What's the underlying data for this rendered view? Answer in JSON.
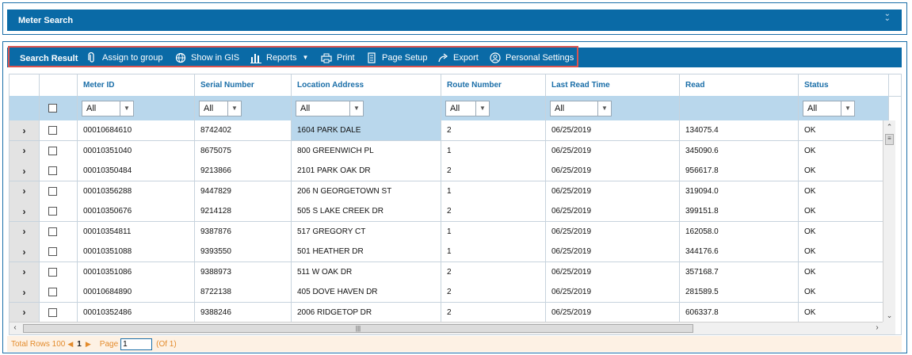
{
  "meter_search": {
    "title": "Meter Search"
  },
  "toolbar": {
    "title": "Search Result",
    "items": [
      {
        "label": "Assign to group",
        "icon": "paperclip-icon"
      },
      {
        "label": "Show in GIS",
        "icon": "globe-icon"
      },
      {
        "label": "Reports",
        "icon": "bar-chart-icon"
      },
      {
        "label": "Print",
        "icon": "print-icon"
      },
      {
        "label": "Page Setup",
        "icon": "page-icon"
      },
      {
        "label": "Export",
        "icon": "export-icon"
      },
      {
        "label": "Personal Settings",
        "icon": "user-icon"
      }
    ]
  },
  "grid": {
    "columns": [
      "Meter ID",
      "Serial Number",
      "Location Address",
      "Route Number",
      "Last Read Time",
      "Read",
      "Status"
    ],
    "filters": {
      "meter_id": "All",
      "serial_number": "All",
      "location_address": "All",
      "route_number": "All",
      "last_read_time": "All",
      "status": "All"
    },
    "rows": [
      {
        "meter_id": "00010684610",
        "serial": "8742402",
        "address": "1604 PARK DALE",
        "route": "2",
        "time": "06/25/2019",
        "read": "134075.4",
        "status": "OK"
      },
      {
        "meter_id": "00010351040",
        "serial": "8675075",
        "address": "800 GREENWICH PL",
        "route": "1",
        "time": "06/25/2019",
        "read": "345090.6",
        "status": "OK"
      },
      {
        "meter_id": "00010350484",
        "serial": "9213866",
        "address": "2101 PARK OAK DR",
        "route": "2",
        "time": "06/25/2019",
        "read": "956617.8",
        "status": "OK"
      },
      {
        "meter_id": "00010356288",
        "serial": "9447829",
        "address": "206 N GEORGETOWN ST",
        "route": "1",
        "time": "06/25/2019",
        "read": "319094.0",
        "status": "OK"
      },
      {
        "meter_id": "00010350676",
        "serial": "9214128",
        "address": "505 S LAKE CREEK DR",
        "route": "2",
        "time": "06/25/2019",
        "read": "399151.8",
        "status": "OK"
      },
      {
        "meter_id": "00010354811",
        "serial": "9387876",
        "address": "517 GREGORY CT",
        "route": "1",
        "time": "06/25/2019",
        "read": "162058.0",
        "status": "OK"
      },
      {
        "meter_id": "00010351088",
        "serial": "9393550",
        "address": "501 HEATHER DR",
        "route": "1",
        "time": "06/25/2019",
        "read": "344176.6",
        "status": "OK"
      },
      {
        "meter_id": "00010351086",
        "serial": "9388973",
        "address": "511 W OAK DR",
        "route": "2",
        "time": "06/25/2019",
        "read": "357168.7",
        "status": "OK"
      },
      {
        "meter_id": "00010684890",
        "serial": "8722138",
        "address": "405 DOVE HAVEN DR",
        "route": "2",
        "time": "06/25/2019",
        "read": "281589.5",
        "status": "OK"
      },
      {
        "meter_id": "00010352486",
        "serial": "9388246",
        "address": "2006 RIDGETOP DR",
        "route": "2",
        "time": "06/25/2019",
        "read": "606337.8",
        "status": "OK"
      }
    ]
  },
  "pager": {
    "total_label": "Total Rows 100",
    "current_page": "1",
    "page_label": "Page",
    "page_input": "1",
    "of_label": "(Of 1)"
  },
  "colors": {
    "header_blue": "#0a6aa6",
    "link_blue": "#1a6ea8",
    "filter_row": "#b9d7ec",
    "status_ok": "#2e9a2e",
    "highlight": "#d9534f"
  }
}
